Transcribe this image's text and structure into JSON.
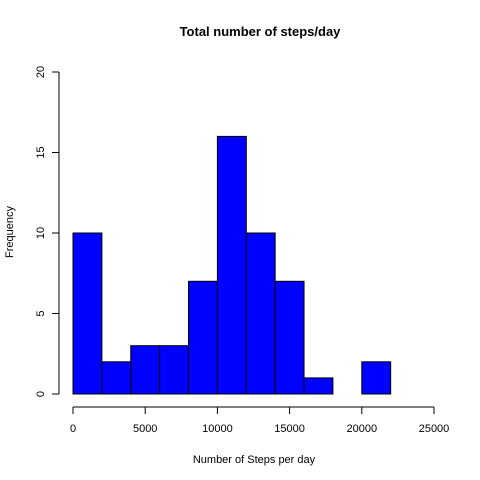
{
  "chart_data": {
    "type": "bar",
    "subtype": "histogram",
    "title": "Total number of steps/day",
    "xlabel": "Number of Steps per day",
    "ylabel": "Frequency",
    "bins": [
      {
        "start": 0,
        "end": 2000,
        "count": 10
      },
      {
        "start": 2000,
        "end": 4000,
        "count": 2
      },
      {
        "start": 4000,
        "end": 6000,
        "count": 3
      },
      {
        "start": 6000,
        "end": 8000,
        "count": 3
      },
      {
        "start": 8000,
        "end": 10000,
        "count": 7
      },
      {
        "start": 10000,
        "end": 12000,
        "count": 16
      },
      {
        "start": 12000,
        "end": 14000,
        "count": 10
      },
      {
        "start": 14000,
        "end": 16000,
        "count": 7
      },
      {
        "start": 16000,
        "end": 18000,
        "count": 1
      },
      {
        "start": 18000,
        "end": 20000,
        "count": 0
      },
      {
        "start": 20000,
        "end": 22000,
        "count": 2
      }
    ],
    "xlim": [
      0,
      25000
    ],
    "ylim": [
      0,
      20
    ],
    "x_ticks": [
      0,
      5000,
      10000,
      15000,
      20000,
      25000
    ],
    "x_tick_labels": [
      "0",
      "5000",
      "10000",
      "15000",
      "20000",
      "25000"
    ],
    "y_ticks": [
      0,
      5,
      10,
      15,
      20
    ],
    "y_tick_labels": [
      "0",
      "5",
      "10",
      "15",
      "20"
    ],
    "bar_color": "#0000ff",
    "bar_border_color": "#000000",
    "grid": false,
    "legend": "none"
  }
}
